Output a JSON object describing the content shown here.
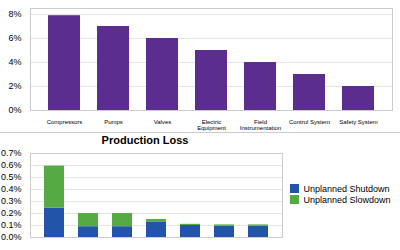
{
  "chart_data": [
    {
      "type": "bar",
      "categories": [
        "Compressors",
        "Pumps",
        "Valves",
        "Electric\nEquipment",
        "Field\nInstrumentation",
        "Control System",
        "Safety System"
      ],
      "values": [
        0.079,
        0.07,
        0.06,
        0.05,
        0.04,
        0.03,
        0.02
      ],
      "color": "#5b2d8e",
      "ylim": [
        0,
        0.085
      ],
      "yticks": [
        {
          "value": 0.0,
          "label": "0%"
        },
        {
          "value": 0.02,
          "label": "2%"
        },
        {
          "value": 0.04,
          "label": "4%"
        },
        {
          "value": 0.06,
          "label": "6%"
        },
        {
          "value": 0.08,
          "label": "8%"
        }
      ],
      "grid": true
    },
    {
      "type": "bar",
      "title": "Production Loss",
      "stacked": true,
      "categories": [
        null,
        null,
        null,
        null,
        null,
        null,
        null
      ],
      "series": [
        {
          "name": "Unplanned Shutdown",
          "color": "#2255aa",
          "values": [
            0.00245,
            0.0009,
            0.0009,
            0.0013,
            0.001,
            0.00095,
            0.00095
          ]
        },
        {
          "name": "Unplanned Slowdown",
          "color": "#55aa44",
          "values": [
            0.0035,
            0.0011,
            0.0011,
            0.0002,
            0.0001,
            0.0001,
            0.0001
          ]
        }
      ],
      "ylim": [
        0,
        0.007
      ],
      "yticks": [
        {
          "value": 0.0,
          "label": "0.0%"
        },
        {
          "value": 0.001,
          "label": "0.1%"
        },
        {
          "value": 0.002,
          "label": "0.2%"
        },
        {
          "value": 0.003,
          "label": "0.3%"
        },
        {
          "value": 0.004,
          "label": "0.4%"
        },
        {
          "value": 0.005,
          "label": "0.5%"
        },
        {
          "value": 0.006,
          "label": "0.6%"
        },
        {
          "value": 0.007,
          "label": "0.7%"
        }
      ],
      "grid": true,
      "legend": "right"
    }
  ]
}
